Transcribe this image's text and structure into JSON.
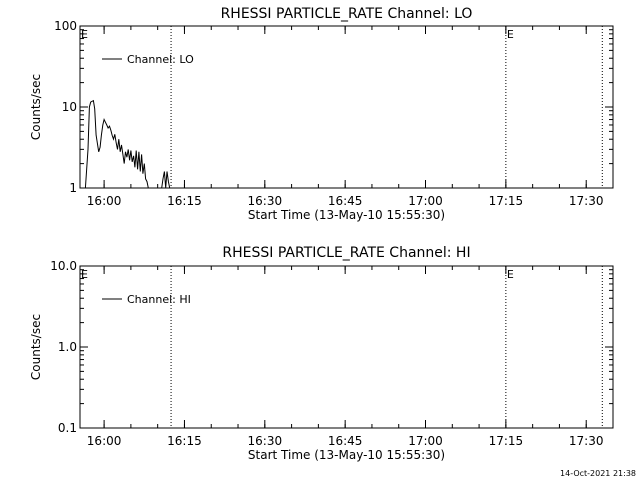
{
  "timestamp": "14-Oct-2021 21:38",
  "chart_data": [
    {
      "type": "line",
      "title": "RHESSI PARTICLE_RATE Channel: LO",
      "xlabel": "Start Time (13-May-10 15:55:30)",
      "ylabel": "Counts/sec",
      "yscale": "log",
      "xlim": [
        "15:55:30",
        "17:35:00"
      ],
      "ylim": [
        1,
        100
      ],
      "xticks": [
        "16:00",
        "16:15",
        "16:30",
        "16:45",
        "17:00",
        "17:15",
        "17:30"
      ],
      "yticks": [
        "1",
        "10",
        "100"
      ],
      "legend": {
        "label": "Channel: LO",
        "position": "top-left"
      },
      "flags": [
        {
          "time": "15:55:30",
          "label": "E"
        },
        {
          "time": "17:15:00",
          "label": "E"
        }
      ],
      "vlines": [
        "16:12:30",
        "17:15:00",
        "17:33:00"
      ],
      "series": [
        {
          "name": "Channel: LO",
          "x": [
            "15:56:30",
            "15:57:00",
            "15:57:15",
            "15:57:30",
            "15:58:00",
            "15:58:15",
            "15:58:30",
            "15:59:00",
            "15:59:15",
            "15:59:30",
            "15:59:45",
            "16:00:00",
            "16:00:15",
            "16:00:30",
            "16:00:45",
            "16:01:00",
            "16:01:15",
            "16:01:30",
            "16:01:45",
            "16:02:00",
            "16:02:15",
            "16:02:30",
            "16:02:45",
            "16:03:00",
            "16:03:15",
            "16:03:30",
            "16:03:45",
            "16:04:00",
            "16:04:15",
            "16:04:30",
            "16:04:45",
            "16:05:00",
            "16:05:15",
            "16:05:30",
            "16:05:45",
            "16:06:00",
            "16:06:15",
            "16:06:30",
            "16:06:45",
            "16:07:00",
            "16:07:15",
            "16:07:30",
            "16:07:45",
            "16:08:00",
            "16:08:15",
            "16:08:30",
            "16:08:45",
            "16:09:00",
            "16:09:15",
            "16:09:30",
            "16:09:45",
            "16:10:00",
            "16:10:30",
            "16:10:45",
            "16:11:00",
            "16:11:15",
            "16:11:30",
            "16:11:45",
            "16:12:00",
            "16:12:15"
          ],
          "values": [
            1.0,
            3.0,
            10.0,
            11.5,
            12.0,
            9.5,
            4.5,
            2.8,
            3.2,
            4.5,
            6.0,
            7.0,
            6.5,
            6.0,
            5.5,
            5.8,
            5.2,
            4.5,
            4.0,
            4.6,
            3.6,
            3.0,
            4.0,
            2.8,
            3.4,
            2.6,
            2.0,
            2.8,
            2.4,
            3.0,
            2.2,
            2.9,
            2.1,
            2.5,
            1.8,
            2.9,
            1.7,
            2.8,
            1.6,
            2.6,
            1.5,
            2.0,
            1.3,
            1.2,
            1.0,
            1.0,
            1.0,
            1.0,
            1.0,
            1.0,
            1.0,
            1.0,
            1.0,
            1.0,
            1.3,
            1.6,
            1.0,
            1.6,
            1.2,
            1.0
          ]
        }
      ]
    },
    {
      "type": "line",
      "title": "RHESSI PARTICLE_RATE Channel: HI",
      "xlabel": "Start Time (13-May-10 15:55:30)",
      "ylabel": "Counts/sec",
      "yscale": "log",
      "xlim": [
        "15:55:30",
        "17:35:00"
      ],
      "ylim": [
        0.1,
        10
      ],
      "xticks": [
        "16:00",
        "16:15",
        "16:30",
        "16:45",
        "17:00",
        "17:15",
        "17:30"
      ],
      "yticks": [
        "0.1",
        "1.0",
        "10.0"
      ],
      "legend": {
        "label": "Channel: HI",
        "position": "top-left"
      },
      "flags": [
        {
          "time": "15:55:30",
          "label": "E"
        },
        {
          "time": "17:15:00",
          "label": "E"
        }
      ],
      "vlines": [
        "16:12:30",
        "17:15:00",
        "17:33:00"
      ],
      "series": [
        {
          "name": "Channel: HI",
          "x": [],
          "values": []
        }
      ]
    }
  ]
}
